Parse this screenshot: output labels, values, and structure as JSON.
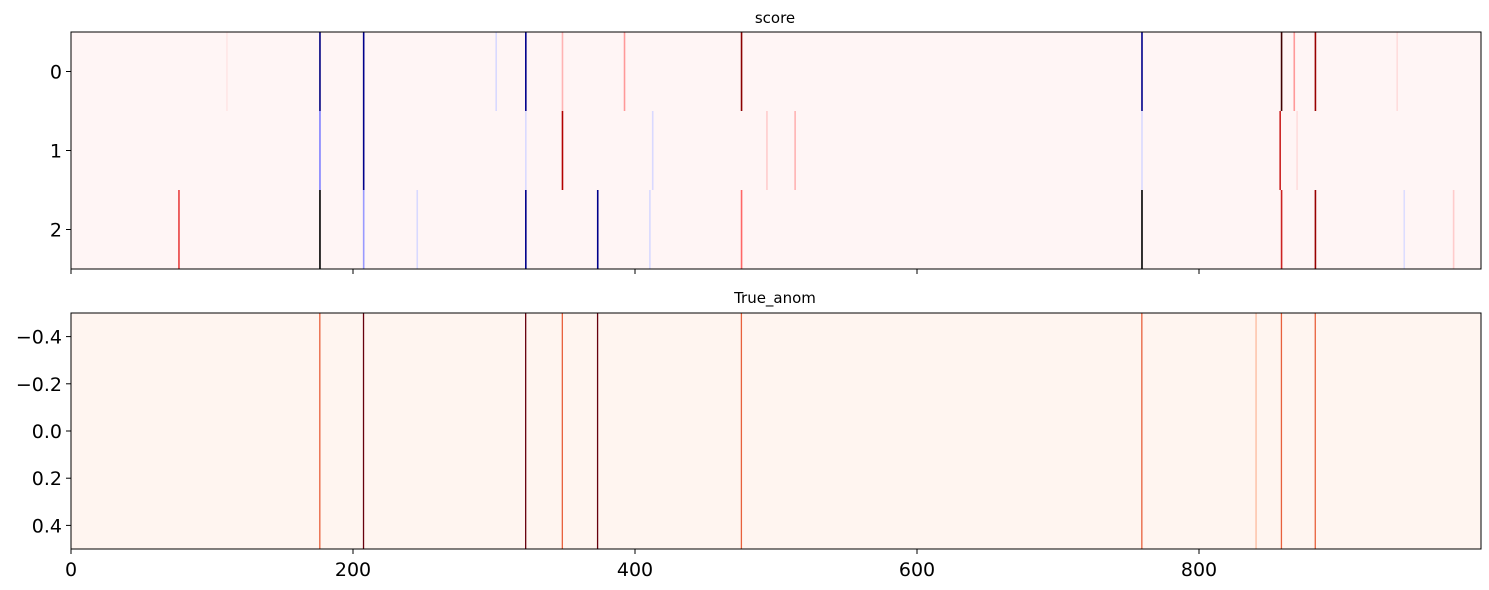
{
  "chart_data": [
    {
      "type": "heatmap",
      "title": "score",
      "x_range": [
        0,
        1000
      ],
      "rows": [
        "0",
        "1",
        "2"
      ],
      "ytick_labels": [
        "0",
        "1",
        "2"
      ],
      "xtick_values": [
        0,
        200,
        400,
        600,
        800
      ],
      "xtick_labels_shown": false,
      "background_color": "#fff5f5",
      "colormap": "bwr",
      "stripes": [
        {
          "row": 0,
          "x": 176,
          "color": "#000080"
        },
        {
          "row": 0,
          "x": 207,
          "color": "#00008b"
        },
        {
          "row": 0,
          "x": 322,
          "color": "#00008b"
        },
        {
          "row": 0,
          "x": 348,
          "color": "#ffb3b3"
        },
        {
          "row": 0,
          "x": 392,
          "color": "#ff9999"
        },
        {
          "row": 0,
          "x": 475,
          "color": "#8b0000"
        },
        {
          "row": 0,
          "x": 759,
          "color": "#00008b"
        },
        {
          "row": 0,
          "x": 858,
          "color": "#400000"
        },
        {
          "row": 0,
          "x": 867,
          "color": "#ff9999"
        },
        {
          "row": 0,
          "x": 882,
          "color": "#990000"
        },
        {
          "row": 0,
          "x": 301,
          "color": "#d9d9ff"
        },
        {
          "row": 0,
          "x": 110,
          "color": "#ffe6e6"
        },
        {
          "row": 0,
          "x": 940,
          "color": "#ffdddd"
        },
        {
          "row": 1,
          "x": 176,
          "color": "#8080ff"
        },
        {
          "row": 1,
          "x": 207,
          "color": "#00008b"
        },
        {
          "row": 1,
          "x": 322,
          "color": "#d9d9ff"
        },
        {
          "row": 1,
          "x": 348,
          "color": "#b30000"
        },
        {
          "row": 1,
          "x": 412,
          "color": "#d9d9ff"
        },
        {
          "row": 1,
          "x": 493,
          "color": "#ffcccc"
        },
        {
          "row": 1,
          "x": 513,
          "color": "#ffb3b3"
        },
        {
          "row": 1,
          "x": 759,
          "color": "#d9d9ff"
        },
        {
          "row": 1,
          "x": 857,
          "color": "#cc2222"
        },
        {
          "row": 1,
          "x": 869,
          "color": "#ffdddd"
        },
        {
          "row": 2,
          "x": 76,
          "color": "#e84040"
        },
        {
          "row": 2,
          "x": 176,
          "color": "#000000"
        },
        {
          "row": 2,
          "x": 207,
          "color": "#9999ff"
        },
        {
          "row": 2,
          "x": 322,
          "color": "#00008b"
        },
        {
          "row": 2,
          "x": 373,
          "color": "#00008b"
        },
        {
          "row": 2,
          "x": 410,
          "color": "#d9d9ff"
        },
        {
          "row": 2,
          "x": 475,
          "color": "#ff6666"
        },
        {
          "row": 2,
          "x": 759,
          "color": "#000000"
        },
        {
          "row": 2,
          "x": 858,
          "color": "#cc2222"
        },
        {
          "row": 2,
          "x": 882,
          "color": "#990000"
        },
        {
          "row": 2,
          "x": 245,
          "color": "#d9d9ff"
        },
        {
          "row": 2,
          "x": 945,
          "color": "#ddddff"
        },
        {
          "row": 2,
          "x": 980,
          "color": "#ffcccc"
        }
      ]
    },
    {
      "type": "heatmap",
      "title": "True_anom",
      "x_range": [
        0,
        1000
      ],
      "ylim": [
        -0.5,
        0.5
      ],
      "ytick_values": [
        -0.4,
        -0.2,
        0.0,
        0.2,
        0.4
      ],
      "ytick_labels": [
        "−0.4",
        "−0.2",
        "0.0",
        "0.2",
        "0.4"
      ],
      "xtick_values": [
        0,
        200,
        400,
        600,
        800
      ],
      "xtick_labels": [
        "0",
        "200",
        "400",
        "600",
        "800"
      ],
      "background_color": "#fff5f0",
      "colormap": "Reds",
      "stripes": [
        {
          "x": 176,
          "color": "#e8603c"
        },
        {
          "x": 207,
          "color": "#67000d"
        },
        {
          "x": 322,
          "color": "#67000d"
        },
        {
          "x": 348,
          "color": "#e8603c"
        },
        {
          "x": 373,
          "color": "#67000d"
        },
        {
          "x": 475,
          "color": "#e8603c"
        },
        {
          "x": 759,
          "color": "#e8603c"
        },
        {
          "x": 840,
          "color": "#fcbb9e"
        },
        {
          "x": 858,
          "color": "#e8603c"
        },
        {
          "x": 882,
          "color": "#e8603c"
        }
      ]
    }
  ]
}
